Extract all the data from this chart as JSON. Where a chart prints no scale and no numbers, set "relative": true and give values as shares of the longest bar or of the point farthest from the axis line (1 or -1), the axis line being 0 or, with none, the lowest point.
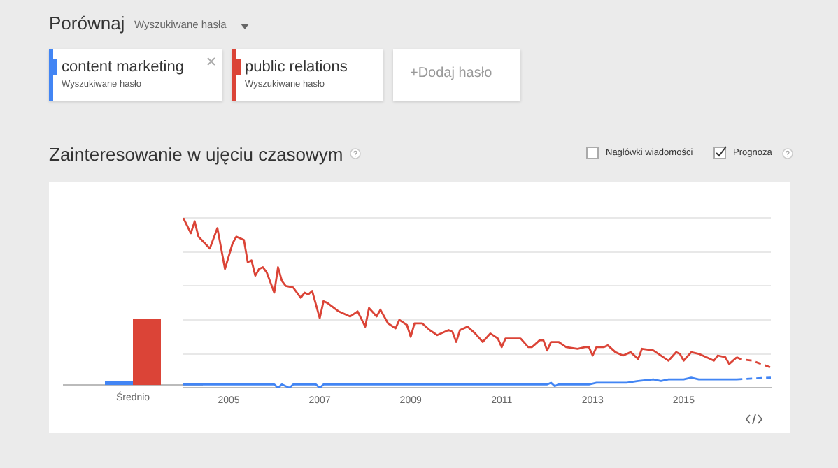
{
  "chart_data": [
    {
      "type": "bar",
      "title": "Zainteresowanie w ujęciu czasowym",
      "categories": [
        "Średnio"
      ],
      "relative": true,
      "grid": false,
      "series": [
        {
          "color": "#4285f4",
          "values": [
            0.06
          ]
        },
        {
          "color": "#db4437",
          "values": [
            1
          ]
        }
      ],
      "annotations": [
        "Porównaj",
        "Wyszukiwane hasła",
        "Wyszukiwane hasło",
        "Wyszukiwane hasło",
        "+Dodaj hasło",
        "Nagłówki wiadomości",
        "Prognoza"
      ]
    },
    {
      "type": "line",
      "relative": true,
      "grid": "y",
      "legend": "top left",
      "xlim": [
        "2004-01",
        "2016-12"
      ],
      "xticks": [
        "2005",
        "2007",
        "2009",
        "2011",
        "2013",
        "2015"
      ],
      "series": [
        {
          "name": "content marketing",
          "color": "#4285f4",
          "line_style": "solid",
          "x": [
            "2004-01",
            "2006-01",
            "2006-02",
            "2006-03",
            "2006-05",
            "2006-06",
            "2006-12",
            "2007-01",
            "2007-02",
            "2012-01",
            "2012-02",
            "2012-03",
            "2012-04",
            "2012-12",
            "2013-02",
            "2013-10",
            "2014-01",
            "2014-05",
            "2014-07",
            "2014-09",
            "2015-01",
            "2015-03",
            "2015-05",
            "2016-03"
          ],
          "values": [
            0.02,
            0.02,
            0.0,
            0.02,
            0.0,
            0.02,
            0.02,
            0.0,
            0.02,
            0.02,
            0.03,
            0.01,
            0.02,
            0.02,
            0.03,
            0.03,
            0.04,
            0.05,
            0.04,
            0.05,
            0.05,
            0.06,
            0.05,
            0.05
          ]
        },
        {
          "name": "public relations",
          "color": "#db4437",
          "line_style": "solid",
          "x": [
            "2004-01",
            "2004-03",
            "2004-04",
            "2004-05",
            "2004-08",
            "2004-10",
            "2004-12",
            "2005-02",
            "2005-03",
            "2005-05",
            "2005-06",
            "2005-07",
            "2005-08",
            "2005-09",
            "2005-10",
            "2005-11",
            "2006-01",
            "2006-02",
            "2006-03",
            "2006-04",
            "2006-06",
            "2006-08",
            "2006-09",
            "2006-10",
            "2006-11",
            "2007-01",
            "2007-02",
            "2007-03",
            "2007-06",
            "2007-09",
            "2007-11",
            "2008-01",
            "2008-02",
            "2008-04",
            "2008-05",
            "2008-07",
            "2008-09",
            "2008-10",
            "2008-12",
            "2009-01",
            "2009-02",
            "2009-04",
            "2009-06",
            "2009-08",
            "2009-11",
            "2009-12",
            "2010-01",
            "2010-02",
            "2010-04",
            "2010-06",
            "2010-08",
            "2010-10",
            "2010-12",
            "2011-01",
            "2011-02",
            "2011-06",
            "2011-08",
            "2011-09",
            "2011-11",
            "2011-12",
            "2012-01",
            "2012-02",
            "2012-04",
            "2012-06",
            "2012-09",
            "2012-11",
            "2012-12",
            "2013-01",
            "2013-02",
            "2013-04",
            "2013-05",
            "2013-07",
            "2013-09",
            "2013-11",
            "2014-01",
            "2014-02",
            "2014-05",
            "2014-09",
            "2014-11",
            "2014-12",
            "2015-01",
            "2015-03",
            "2015-05",
            "2015-09",
            "2015-10",
            "2015-12",
            "2016-01",
            "2016-03"
          ],
          "values": [
            1,
            0.91,
            0.98,
            0.89,
            0.82,
            0.94,
            0.7,
            0.85,
            0.89,
            0.87,
            0.74,
            0.75,
            0.66,
            0.7,
            0.71,
            0.68,
            0.56,
            0.71,
            0.63,
            0.6,
            0.59,
            0.53,
            0.56,
            0.55,
            0.57,
            0.41,
            0.51,
            0.5,
            0.45,
            0.42,
            0.45,
            0.36,
            0.47,
            0.42,
            0.46,
            0.38,
            0.35,
            0.4,
            0.37,
            0.3,
            0.38,
            0.38,
            0.34,
            0.31,
            0.34,
            0.33,
            0.27,
            0.34,
            0.36,
            0.32,
            0.27,
            0.32,
            0.29,
            0.24,
            0.29,
            0.29,
            0.24,
            0.24,
            0.28,
            0.28,
            0.22,
            0.27,
            0.27,
            0.24,
            0.23,
            0.24,
            0.24,
            0.19,
            0.24,
            0.24,
            0.25,
            0.21,
            0.19,
            0.21,
            0.17,
            0.23,
            0.22,
            0.16,
            0.21,
            0.2,
            0.16,
            0.21,
            0.2,
            0.16,
            0.19,
            0.18,
            0.14,
            0.18
          ]
        },
        {
          "color": "#4285f4",
          "line_style": "dashed",
          "x": [
            "2016-03",
            "2016-12"
          ],
          "values": [
            0.05,
            0.06
          ]
        },
        {
          "color": "#db4437",
          "line_style": "dashed",
          "x": [
            "2016-03",
            "2016-04",
            "2016-07",
            "2016-12"
          ],
          "values": [
            0.18,
            0.17,
            0.16,
            0.12
          ]
        }
      ]
    }
  ]
}
